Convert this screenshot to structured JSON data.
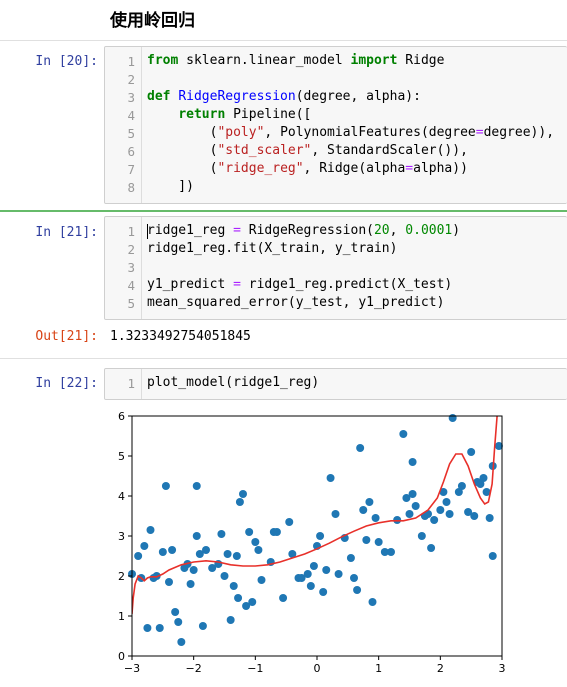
{
  "heading": "使用岭回归",
  "cells": [
    {
      "prompt": "In  [20]:",
      "lines": [
        [
          {
            "t": "from",
            "c": "kw"
          },
          {
            "t": " sklearn.linear_model "
          },
          {
            "t": "import",
            "c": "kw"
          },
          {
            "t": " Ridge"
          }
        ],
        [],
        [
          {
            "t": "def",
            "c": "kw"
          },
          {
            "t": " "
          },
          {
            "t": "RidgeRegression",
            "c": "def"
          },
          {
            "t": "(degree, alpha):"
          }
        ],
        [
          {
            "t": "    "
          },
          {
            "t": "return",
            "c": "kw"
          },
          {
            "t": " Pipeline(["
          }
        ],
        [
          {
            "t": "        ("
          },
          {
            "t": "\"poly\"",
            "c": "str"
          },
          {
            "t": ", PolynomialFeatures(degree"
          },
          {
            "t": "=",
            "c": "op"
          },
          {
            "t": "degree)),"
          }
        ],
        [
          {
            "t": "        ("
          },
          {
            "t": "\"std_scaler\"",
            "c": "str"
          },
          {
            "t": ", StandardScaler()),"
          }
        ],
        [
          {
            "t": "        ("
          },
          {
            "t": "\"ridge_reg\"",
            "c": "str"
          },
          {
            "t": ", Ridge(alpha"
          },
          {
            "t": "=",
            "c": "op"
          },
          {
            "t": "alpha))"
          }
        ],
        [
          {
            "t": "    ])"
          }
        ]
      ]
    },
    {
      "prompt": "In  [21]:",
      "lines": [
        [
          {
            "t": "ridge1_reg "
          },
          {
            "t": "=",
            "c": "op"
          },
          {
            "t": " RidgeRegression("
          },
          {
            "t": "20",
            "c": "num"
          },
          {
            "t": ", "
          },
          {
            "t": "0.0001",
            "c": "num"
          },
          {
            "t": ")"
          }
        ],
        [
          {
            "t": "ridge1_reg.fit(X_train, y_train)"
          }
        ],
        [],
        [
          {
            "t": "y1_predict "
          },
          {
            "t": "=",
            "c": "op"
          },
          {
            "t": " ridge1_reg.predict(X_test)"
          }
        ],
        [
          {
            "t": "mean_squared_error(y_test, y1_predict)"
          }
        ]
      ],
      "out_prompt": "Out[21]:",
      "output": "1.3233492754051845"
    },
    {
      "prompt": "In  [22]:",
      "lines": [
        [
          {
            "t": "plot_model(ridge1_reg)"
          }
        ]
      ]
    }
  ],
  "chart_data": {
    "type": "scatter",
    "xlim": [
      -3,
      3
    ],
    "ylim": [
      0,
      6
    ],
    "xticks": [
      "−3",
      "−2",
      "−1",
      "0",
      "1",
      "2",
      "3"
    ],
    "yticks": [
      "0",
      "1",
      "2",
      "3",
      "4",
      "5",
      "6"
    ],
    "point_color": "#1f77b4",
    "line_color": "#e8302a",
    "points": [
      [
        -3.0,
        2.05
      ],
      [
        -2.9,
        2.5
      ],
      [
        -2.85,
        1.95
      ],
      [
        -2.8,
        2.75
      ],
      [
        -2.75,
        0.7
      ],
      [
        -2.7,
        3.15
      ],
      [
        -2.65,
        1.95
      ],
      [
        -2.6,
        2.0
      ],
      [
        -2.55,
        0.7
      ],
      [
        -2.5,
        2.6
      ],
      [
        -2.45,
        4.25
      ],
      [
        -2.4,
        1.85
      ],
      [
        -2.35,
        2.65
      ],
      [
        -2.3,
        1.1
      ],
      [
        -2.25,
        0.85
      ],
      [
        -2.2,
        0.35
      ],
      [
        -2.15,
        2.2
      ],
      [
        -2.1,
        2.3
      ],
      [
        -2.05,
        1.8
      ],
      [
        -2.0,
        2.15
      ],
      [
        -1.95,
        4.25
      ],
      [
        -1.95,
        3.0
      ],
      [
        -1.9,
        2.55
      ],
      [
        -1.85,
        0.75
      ],
      [
        -1.8,
        2.65
      ],
      [
        -1.7,
        2.2
      ],
      [
        -1.6,
        2.3
      ],
      [
        -1.55,
        3.05
      ],
      [
        -1.5,
        2.0
      ],
      [
        -1.45,
        2.55
      ],
      [
        -1.4,
        0.9
      ],
      [
        -1.35,
        1.75
      ],
      [
        -1.3,
        2.5
      ],
      [
        -1.28,
        1.45
      ],
      [
        -1.25,
        3.85
      ],
      [
        -1.2,
        4.05
      ],
      [
        -1.15,
        1.25
      ],
      [
        -1.1,
        3.1
      ],
      [
        -1.05,
        1.35
      ],
      [
        -1.0,
        2.85
      ],
      [
        -0.95,
        2.65
      ],
      [
        -0.9,
        1.9
      ],
      [
        -0.75,
        2.35
      ],
      [
        -0.7,
        3.1
      ],
      [
        -0.65,
        3.1
      ],
      [
        -0.55,
        1.45
      ],
      [
        -0.45,
        3.35
      ],
      [
        -0.4,
        2.55
      ],
      [
        -0.3,
        1.95
      ],
      [
        -0.25,
        1.95
      ],
      [
        -0.15,
        2.05
      ],
      [
        -0.1,
        1.75
      ],
      [
        -0.05,
        2.25
      ],
      [
        0.0,
        2.75
      ],
      [
        0.05,
        3.0
      ],
      [
        0.1,
        1.6
      ],
      [
        0.15,
        2.15
      ],
      [
        0.22,
        4.45
      ],
      [
        0.3,
        3.55
      ],
      [
        0.35,
        2.05
      ],
      [
        0.45,
        2.95
      ],
      [
        0.55,
        2.45
      ],
      [
        0.6,
        1.95
      ],
      [
        0.65,
        1.65
      ],
      [
        0.7,
        5.2
      ],
      [
        0.75,
        3.65
      ],
      [
        0.8,
        2.9
      ],
      [
        0.85,
        3.85
      ],
      [
        0.9,
        1.35
      ],
      [
        0.95,
        3.45
      ],
      [
        1.0,
        2.85
      ],
      [
        1.1,
        2.6
      ],
      [
        1.2,
        2.6
      ],
      [
        1.3,
        3.4
      ],
      [
        1.4,
        5.55
      ],
      [
        1.45,
        3.95
      ],
      [
        1.5,
        3.55
      ],
      [
        1.55,
        4.85
      ],
      [
        1.55,
        4.05
      ],
      [
        1.6,
        3.75
      ],
      [
        1.7,
        3.0
      ],
      [
        1.75,
        3.5
      ],
      [
        1.8,
        3.55
      ],
      [
        1.85,
        2.7
      ],
      [
        1.9,
        3.4
      ],
      [
        2.0,
        3.65
      ],
      [
        2.05,
        4.1
      ],
      [
        2.1,
        3.85
      ],
      [
        2.15,
        3.55
      ],
      [
        2.2,
        5.95
      ],
      [
        2.3,
        4.1
      ],
      [
        2.35,
        4.25
      ],
      [
        2.45,
        3.6
      ],
      [
        2.5,
        5.1
      ],
      [
        2.55,
        3.5
      ],
      [
        2.6,
        4.35
      ],
      [
        2.65,
        4.3
      ],
      [
        2.7,
        4.45
      ],
      [
        2.75,
        4.1
      ],
      [
        2.8,
        3.45
      ],
      [
        2.85,
        2.5
      ],
      [
        2.85,
        4.75
      ],
      [
        2.95,
        5.25
      ]
    ],
    "curve": [
      [
        -3.0,
        1.05
      ],
      [
        -2.98,
        1.45
      ],
      [
        -2.95,
        1.8
      ],
      [
        -2.9,
        2.0
      ],
      [
        -2.85,
        1.95
      ],
      [
        -2.8,
        1.88
      ],
      [
        -2.75,
        1.95
      ],
      [
        -2.7,
        1.98
      ],
      [
        -2.6,
        1.98
      ],
      [
        -2.5,
        2.05
      ],
      [
        -2.4,
        2.15
      ],
      [
        -2.2,
        2.28
      ],
      [
        -2.0,
        2.35
      ],
      [
        -1.8,
        2.38
      ],
      [
        -1.6,
        2.35
      ],
      [
        -1.4,
        2.28
      ],
      [
        -1.2,
        2.25
      ],
      [
        -1.0,
        2.25
      ],
      [
        -0.8,
        2.28
      ],
      [
        -0.6,
        2.35
      ],
      [
        -0.4,
        2.45
      ],
      [
        -0.2,
        2.55
      ],
      [
        0.0,
        2.68
      ],
      [
        0.2,
        2.82
      ],
      [
        0.4,
        2.98
      ],
      [
        0.6,
        3.12
      ],
      [
        0.8,
        3.25
      ],
      [
        1.0,
        3.33
      ],
      [
        1.2,
        3.38
      ],
      [
        1.4,
        3.38
      ],
      [
        1.6,
        3.45
      ],
      [
        1.8,
        3.65
      ],
      [
        1.95,
        3.95
      ],
      [
        2.05,
        4.35
      ],
      [
        2.15,
        4.8
      ],
      [
        2.25,
        5.05
      ],
      [
        2.35,
        5.05
      ],
      [
        2.45,
        4.75
      ],
      [
        2.55,
        4.3
      ],
      [
        2.65,
        3.95
      ],
      [
        2.72,
        3.8
      ],
      [
        2.78,
        3.85
      ],
      [
        2.84,
        4.3
      ],
      [
        2.88,
        5.2
      ],
      [
        2.92,
        6.0
      ]
    ]
  }
}
